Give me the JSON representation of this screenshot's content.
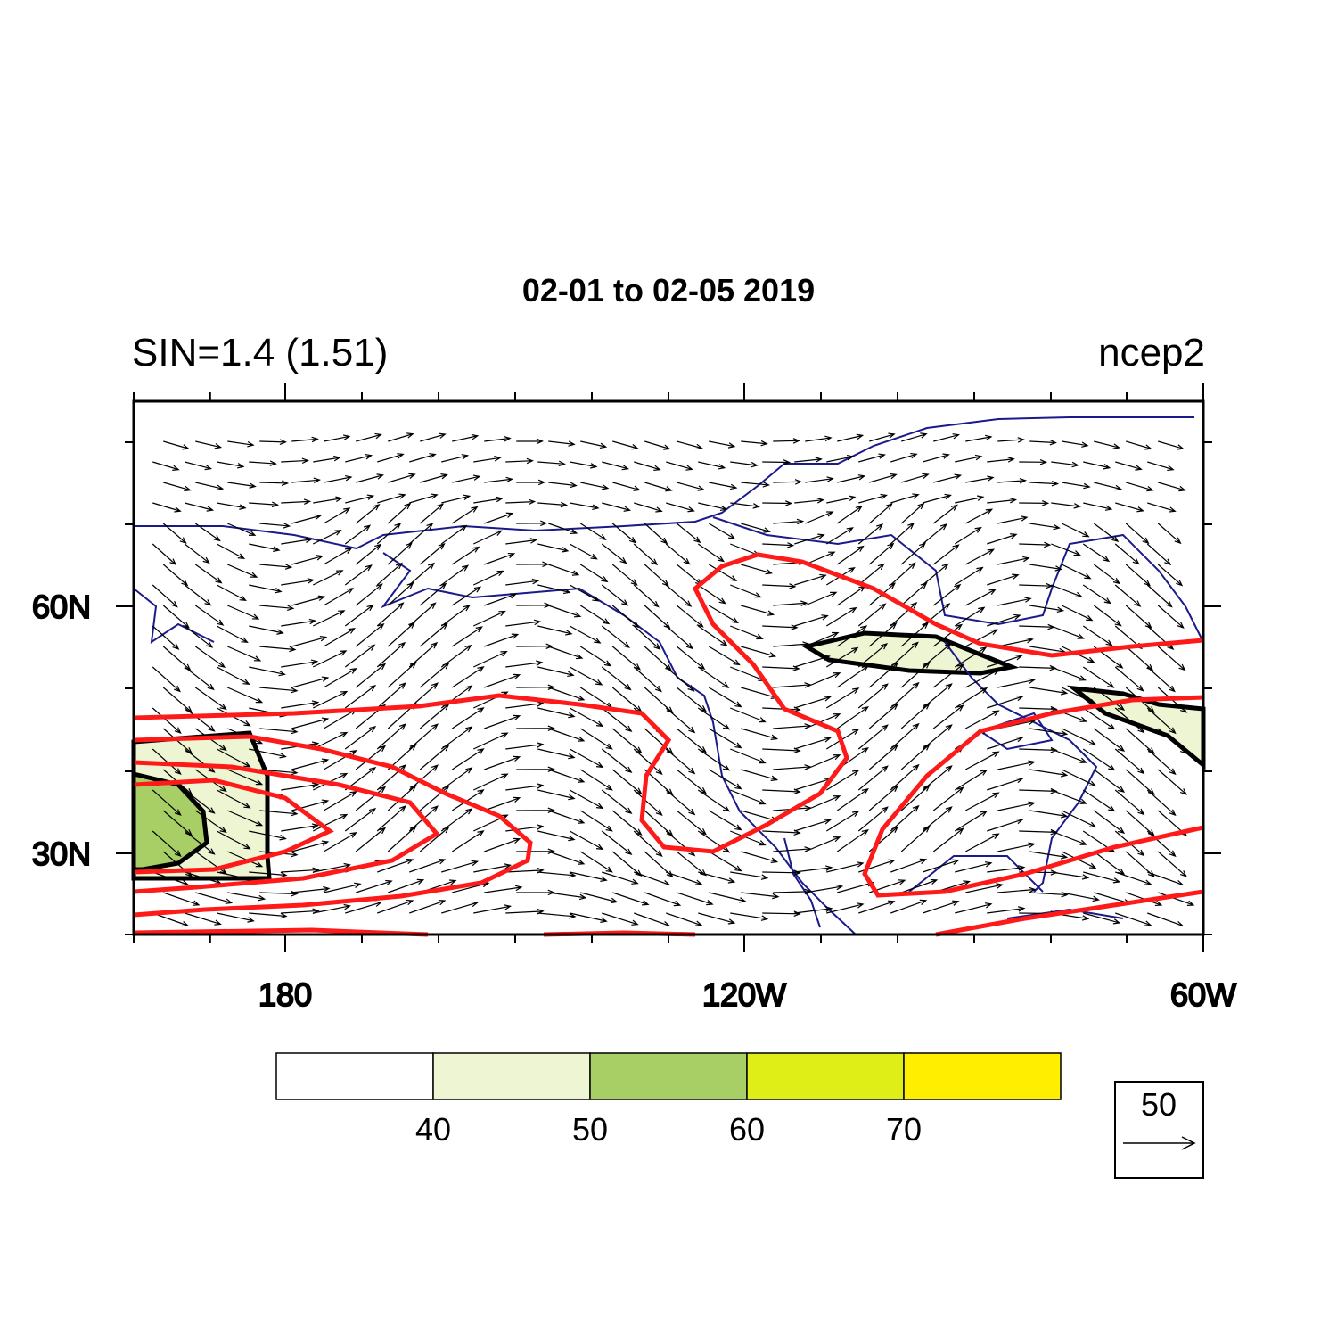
{
  "title": "02-01 to 02-05 2019",
  "left_string": "SIN=1.4 (1.51)",
  "right_string": "ncep2",
  "x_axis": {
    "labels": [
      "180",
      "120W",
      "60W"
    ]
  },
  "y_axis": {
    "labels": [
      "60N",
      "30N"
    ]
  },
  "colorbar": {
    "labels": [
      40,
      50,
      60,
      70
    ],
    "colors": [
      "#ffffff",
      "#eef5d3",
      "#a8cf66",
      "#dfee17",
      "#ffee00"
    ]
  },
  "reference_vector": {
    "label": 50
  }
}
